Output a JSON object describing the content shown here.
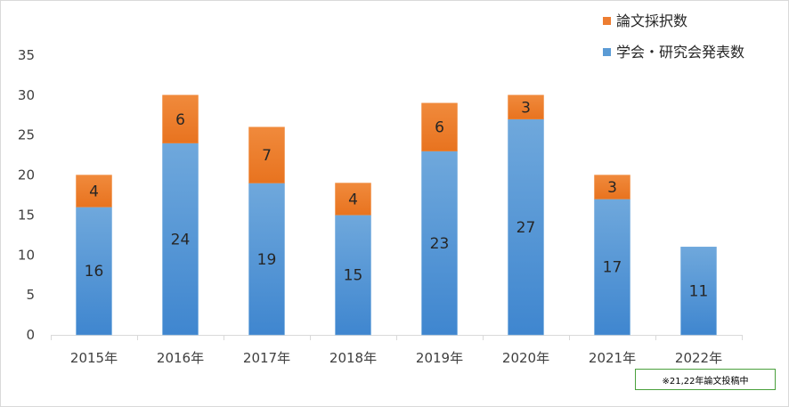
{
  "chart_data": {
    "type": "bar",
    "stacked": true,
    "categories": [
      "2015年",
      "2016年",
      "2017年",
      "2018年",
      "2019年",
      "2020年",
      "2021年",
      "2022年"
    ],
    "series": [
      {
        "name": "学会・研究会発表数",
        "values": [
          16,
          24,
          19,
          15,
          23,
          27,
          17,
          11
        ],
        "color": "#5b9bd5"
      },
      {
        "name": "論文採択数",
        "values": [
          4,
          6,
          7,
          4,
          6,
          3,
          3,
          0
        ],
        "color": "#ed7d31"
      }
    ],
    "title": "",
    "xlabel": "",
    "ylabel": "",
    "ylim": [
      0,
      35
    ],
    "yticks": [
      0,
      5,
      10,
      15,
      20,
      25,
      30,
      35
    ],
    "grid": false,
    "legend": "top-right"
  },
  "note": "※21,22年論文投稿中"
}
